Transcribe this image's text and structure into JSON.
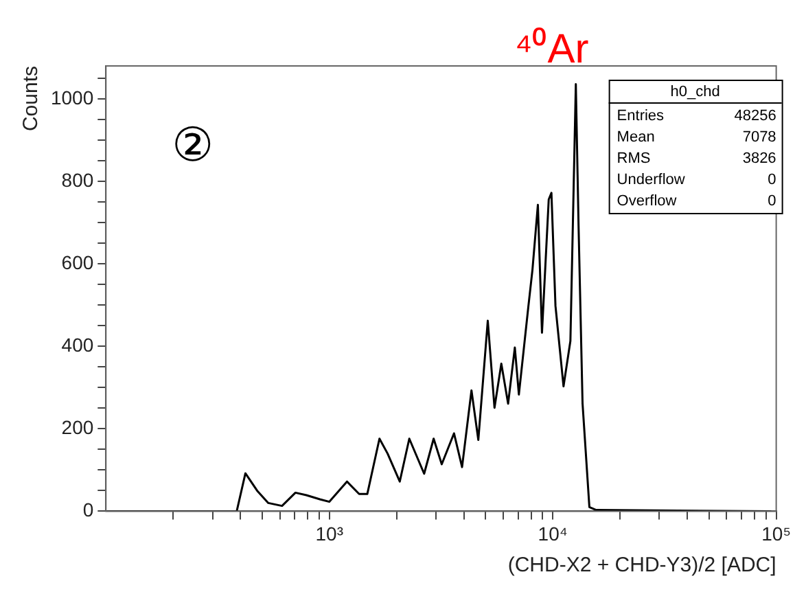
{
  "chart_data": {
    "type": "line",
    "title": "⁴⁰Ar",
    "xlabel": "(CHD-X2 + CHD-Y3)/2 [ADC]",
    "ylabel": "Counts",
    "annotations": [
      "②",
      "h0_chd",
      "Entries",
      "48256",
      "Mean",
      "7078",
      "RMS",
      "3826",
      "Underflow",
      "0",
      "Overflow",
      "0"
    ],
    "log": "x",
    "grid": false,
    "legend": false,
    "marker": "none",
    "line_style": "solid",
    "xlim": [
      100,
      100000
    ],
    "ylim": [
      0,
      1080
    ],
    "xticks": [
      {
        "value": 200,
        "label": null
      },
      {
        "value": 300,
        "label": null
      },
      {
        "value": 400,
        "label": null
      },
      {
        "value": 500,
        "label": null
      },
      {
        "value": 600,
        "label": null
      },
      {
        "value": 700,
        "label": null
      },
      {
        "value": 800,
        "label": null
      },
      {
        "value": 900,
        "label": null
      },
      {
        "value": 1000,
        "label": "10³"
      },
      {
        "value": 2000,
        "label": null
      },
      {
        "value": 3000,
        "label": null
      },
      {
        "value": 4000,
        "label": null
      },
      {
        "value": 5000,
        "label": null
      },
      {
        "value": 6000,
        "label": null
      },
      {
        "value": 7000,
        "label": null
      },
      {
        "value": 8000,
        "label": null
      },
      {
        "value": 9000,
        "label": null
      },
      {
        "value": 10000,
        "label": "10⁴"
      },
      {
        "value": 20000,
        "label": null
      },
      {
        "value": 30000,
        "label": null
      },
      {
        "value": 40000,
        "label": null
      },
      {
        "value": 50000,
        "label": null
      },
      {
        "value": 60000,
        "label": null
      },
      {
        "value": 70000,
        "label": null
      },
      {
        "value": 80000,
        "label": null
      },
      {
        "value": 90000,
        "label": null
      },
      {
        "value": 100000,
        "label": "10⁵"
      }
    ],
    "yticks": [
      0,
      {
        "value": 50,
        "label": null
      },
      {
        "value": 100,
        "label": null
      },
      {
        "value": 150,
        "label": null
      },
      200,
      {
        "value": 250,
        "label": null
      },
      {
        "value": 300,
        "label": null
      },
      {
        "value": 350,
        "label": null
      },
      400,
      {
        "value": 450,
        "label": null
      },
      {
        "value": 500,
        "label": null
      },
      {
        "value": 550,
        "label": null
      },
      600,
      {
        "value": 650,
        "label": null
      },
      {
        "value": 700,
        "label": null
      },
      {
        "value": 750,
        "label": null
      },
      800,
      {
        "value": 850,
        "label": null
      },
      {
        "value": 900,
        "label": null
      },
      {
        "value": 950,
        "label": null
      },
      1000,
      {
        "value": 1050,
        "label": null
      }
    ],
    "series": [
      {
        "color": "#000000",
        "x": [
          100,
          385,
          421,
          475,
          533,
          614,
          705,
          789,
          907,
          1000,
          1199,
          1359,
          1479,
          1676,
          1822,
          2066,
          2279,
          2656,
          2929,
          3184,
          3613,
          3926,
          4326,
          4642,
          5117,
          5484,
          5884,
          6310,
          6763,
          7050,
          7780,
          8111,
          8576,
          8946,
          9590,
          9860,
          10280,
          11170,
          11990,
          12680,
          13040,
          13590,
          14580,
          15630,
          95000
        ],
        "values": [
          0,
          0,
          92,
          50,
          20,
          13,
          45,
          39,
          29,
          23,
          72,
          42,
          42,
          176,
          140,
          72,
          176,
          91,
          176,
          114,
          189,
          107,
          293,
          173,
          462,
          251,
          358,
          261,
          397,
          283,
          498,
          586,
          743,
          433,
          756,
          772,
          498,
          303,
          413,
          1036,
          694,
          261,
          10,
          3,
          0
        ]
      }
    ]
  }
}
